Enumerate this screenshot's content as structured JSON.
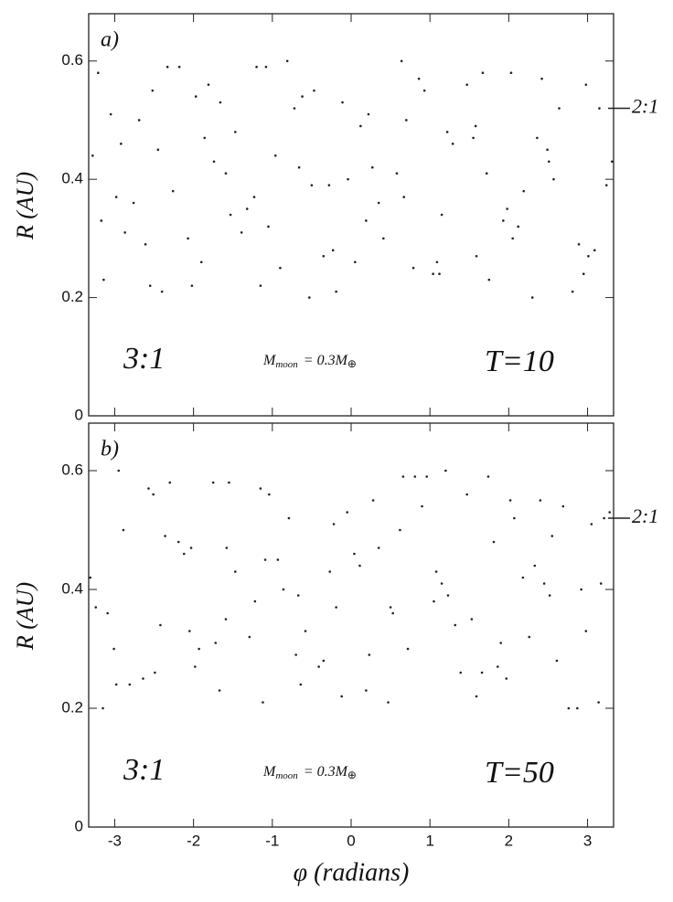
{
  "chart_data": [
    {
      "type": "scatter",
      "panel_label": "a)",
      "ylabel": "R (AU)",
      "ylim": [
        0,
        0.68
      ],
      "yticks": [
        0,
        0.2,
        0.4,
        0.6
      ],
      "xlim": [
        -3.33,
        3.33
      ],
      "resonance_left": "3:1",
      "resonance_right": {
        "label": "2:1",
        "value": 0.52
      },
      "mass_label": {
        "symbol": "M",
        "subscript": "moon",
        "equals": "= 0.3",
        "unit": "M",
        "ref": "⊕"
      },
      "time_label": "T=10",
      "color": "#222222",
      "x": [
        -3.21,
        -2.87,
        -2.45,
        -2.02,
        -1.66,
        -1.23,
        -0.81,
        -0.35,
        0.12,
        0.58,
        1.04,
        1.47,
        1.93,
        2.36,
        2.81,
        3.24,
        -3.05,
        -2.61,
        -2.18,
        -1.74,
        -1.32,
        -0.9,
        -0.47,
        -0.04,
        0.41,
        0.86,
        1.29,
        1.75,
        2.19,
        2.64,
        3.09,
        -3.28,
        -2.76,
        -2.33,
        -1.9,
        -1.47,
        -1.05,
        -0.62,
        -0.19,
        0.27,
        0.7,
        1.15,
        1.59,
        2.03,
        2.49,
        2.95,
        -2.98,
        -2.52,
        -2.07,
        -1.59,
        -1.15,
        -0.72,
        -0.28,
        0.19,
        0.64,
        1.09,
        1.55,
        1.98,
        2.42,
        2.89,
        3.31,
        -3.14,
        -2.69,
        -2.26,
        -1.81,
        -1.39,
        -0.96,
        -0.53,
        -0.11,
        0.35,
        0.79,
        1.22,
        1.67,
        2.12,
        2.57,
        3.01,
        -2.92,
        -2.4,
        -1.97,
        -1.53,
        -1.08,
        -0.66,
        -0.23,
        0.22,
        0.67,
        1.12,
        1.58,
        2.05,
        2.51,
        2.98,
        -3.17,
        -2.55,
        -1.86,
        -1.2,
        -0.5,
        0.05,
        0.93,
        1.72,
        2.3,
        3.15
      ],
      "y": [
        0.58,
        0.31,
        0.45,
        0.22,
        0.53,
        0.37,
        0.6,
        0.27,
        0.49,
        0.41,
        0.24,
        0.56,
        0.33,
        0.47,
        0.21,
        0.39,
        0.51,
        0.29,
        0.59,
        0.43,
        0.35,
        0.25,
        0.55,
        0.4,
        0.3,
        0.57,
        0.46,
        0.23,
        0.38,
        0.52,
        0.28,
        0.44,
        0.36,
        0.59,
        0.26,
        0.48,
        0.32,
        0.54,
        0.21,
        0.42,
        0.5,
        0.34,
        0.27,
        0.58,
        0.45,
        0.24,
        0.37,
        0.55,
        0.3,
        0.41,
        0.22,
        0.52,
        0.39,
        0.33,
        0.6,
        0.26,
        0.47,
        0.35,
        0.57,
        0.29,
        0.43,
        0.23,
        0.5,
        0.38,
        0.56,
        0.31,
        0.44,
        0.2,
        0.53,
        0.36,
        0.25,
        0.48,
        0.58,
        0.32,
        0.4,
        0.27,
        0.46,
        0.21,
        0.54,
        0.34,
        0.59,
        0.42,
        0.28,
        0.51,
        0.37,
        0.24,
        0.49,
        0.3,
        0.43,
        0.56,
        0.33,
        0.22,
        0.47,
        0.59,
        0.39,
        0.26,
        0.55,
        0.41,
        0.2,
        0.52
      ]
    },
    {
      "type": "scatter",
      "panel_label": "b)",
      "ylabel": "R (AU)",
      "xlabel": "φ (radians)",
      "ylim": [
        0,
        0.68
      ],
      "yticks": [
        0,
        0.2,
        0.4,
        0.6
      ],
      "xlim": [
        -3.33,
        3.33
      ],
      "xticks": [
        -3,
        -2,
        -1,
        0,
        1,
        2,
        3
      ],
      "resonance_left": "3:1",
      "resonance_right": {
        "label": "2:1",
        "value": 0.52
      },
      "mass_label": {
        "symbol": "M",
        "subscript": "moon",
        "equals": "= 0.3",
        "unit": "M",
        "ref": "⊕"
      },
      "time_label": "T=50",
      "color": "#222222",
      "x": [
        3.21,
        2.87,
        2.45,
        2.02,
        1.66,
        1.23,
        0.81,
        0.35,
        -0.12,
        -0.58,
        -1.04,
        -1.47,
        -1.93,
        -2.36,
        -2.81,
        -3.24,
        3.05,
        2.61,
        2.18,
        1.74,
        1.32,
        0.9,
        0.47,
        0.04,
        -0.41,
        -0.86,
        -1.29,
        -1.75,
        -2.19,
        -2.64,
        -3.09,
        3.28,
        2.76,
        2.33,
        1.9,
        1.47,
        1.05,
        0.62,
        0.19,
        -0.27,
        -0.7,
        -1.15,
        -1.59,
        -2.03,
        -2.49,
        -2.95,
        2.98,
        2.52,
        2.07,
        1.59,
        1.15,
        0.72,
        0.28,
        -0.19,
        -0.64,
        -1.09,
        -1.55,
        -1.98,
        -2.42,
        -2.89,
        -3.31,
        3.14,
        2.69,
        2.26,
        1.81,
        1.39,
        0.96,
        0.53,
        0.11,
        -0.35,
        -0.79,
        -1.22,
        -1.67,
        -2.12,
        -2.57,
        -3.01,
        2.92,
        2.4,
        1.97,
        1.53,
        1.08,
        0.66,
        0.23,
        -0.22,
        -0.67,
        -1.12,
        -1.58,
        -2.05,
        -2.51,
        -2.98,
        3.17,
        2.55,
        1.86,
        1.2,
        0.5,
        -0.05,
        -0.93,
        -1.72,
        -2.3,
        -3.15
      ],
      "y": [
        0.52,
        0.2,
        0.41,
        0.55,
        0.26,
        0.39,
        0.59,
        0.47,
        0.22,
        0.33,
        0.56,
        0.43,
        0.3,
        0.49,
        0.24,
        0.37,
        0.51,
        0.28,
        0.42,
        0.59,
        0.34,
        0.54,
        0.21,
        0.46,
        0.27,
        0.4,
        0.32,
        0.58,
        0.48,
        0.25,
        0.36,
        0.53,
        0.2,
        0.44,
        0.31,
        0.56,
        0.38,
        0.5,
        0.23,
        0.43,
        0.29,
        0.57,
        0.35,
        0.47,
        0.26,
        0.6,
        0.33,
        0.39,
        0.52,
        0.22,
        0.41,
        0.3,
        0.55,
        0.37,
        0.24,
        0.45,
        0.58,
        0.27,
        0.34,
        0.5,
        0.42,
        0.21,
        0.54,
        0.32,
        0.48,
        0.26,
        0.59,
        0.36,
        0.44,
        0.28,
        0.52,
        0.38,
        0.23,
        0.46,
        0.57,
        0.3,
        0.4,
        0.55,
        0.25,
        0.35,
        0.43,
        0.59,
        0.29,
        0.51,
        0.39,
        0.21,
        0.47,
        0.33,
        0.56,
        0.24,
        0.41,
        0.49,
        0.27,
        0.6,
        0.37,
        0.53,
        0.45,
        0.31,
        0.58,
        0.2
      ]
    }
  ]
}
